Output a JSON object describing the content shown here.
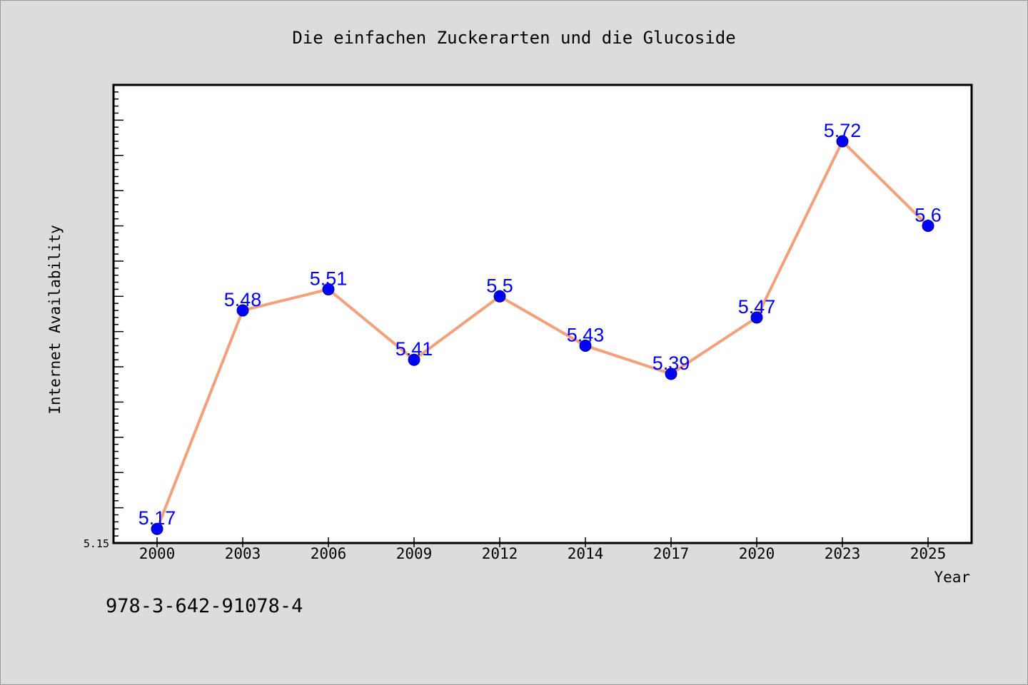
{
  "footer": {
    "code": "978-3-642-91078-4"
  },
  "colors": {
    "line": "#f4a07a",
    "marker": "#0000ff",
    "label": "#0000ff",
    "background": "#dcdcdc",
    "plot": "#ffffff"
  },
  "chart_data": {
    "type": "line",
    "title": "Die einfachen Zuckerarten und die Glucoside",
    "xlabel": "Year",
    "ylabel": "Internet Availability",
    "categories": [
      "2000",
      "2003",
      "2006",
      "2009",
      "2012",
      "2014",
      "2017",
      "2020",
      "2023",
      "2025"
    ],
    "series": [
      {
        "values": [
          5.17,
          5.48,
          5.51,
          5.41,
          5.5,
          5.43,
          5.39,
          5.47,
          5.72,
          5.6
        ]
      }
    ],
    "data_labels": [
      "5.17",
      "5.48",
      "5.51",
      "5.41",
      "5.5",
      "5.43",
      "5.39",
      "5.47",
      "5.72",
      "5.6"
    ],
    "y_tick_labels": [
      "5.15"
    ],
    "ylim": [
      5.15,
      5.8
    ],
    "grid": false,
    "legend": "none"
  }
}
